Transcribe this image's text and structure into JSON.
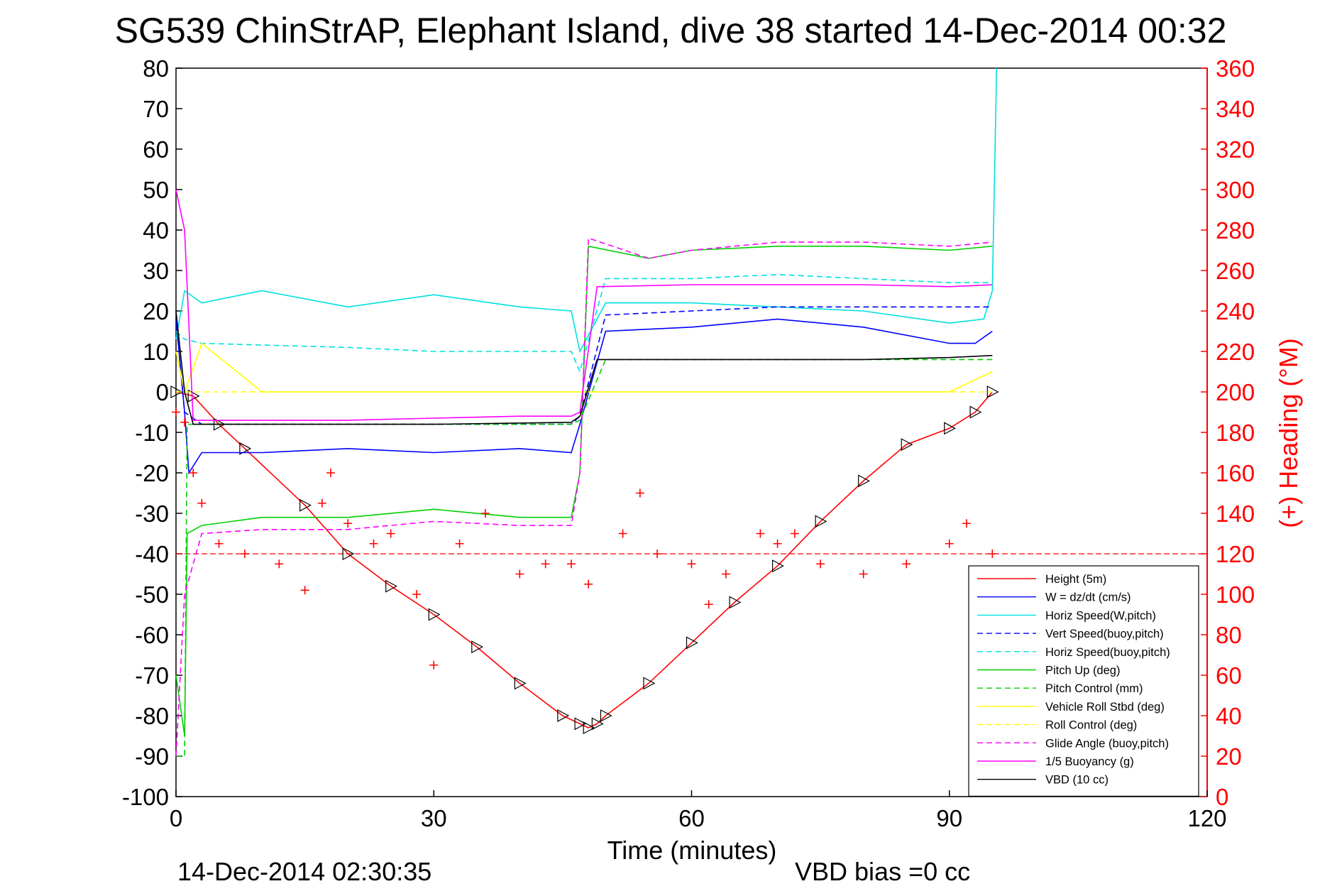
{
  "chart_data": {
    "type": "line",
    "title": "SG539 ChinStrAP, Elephant Island, dive 38 started 14-Dec-2014 00:32",
    "xlabel": "Time (minutes)",
    "ylabel_right": "(+) Heading (°M)",
    "xlim": [
      0,
      120
    ],
    "ylim": [
      -100,
      80
    ],
    "ylim_right": [
      0,
      360
    ],
    "xticks": [
      "0",
      "30",
      "60",
      "90",
      "120"
    ],
    "yticks": [
      "80",
      "70",
      "60",
      "50",
      "40",
      "30",
      "20",
      "10",
      "0",
      "-10",
      "-20",
      "-30",
      "-40",
      "-50",
      "-60",
      "-70",
      "-80",
      "-90",
      "-100"
    ],
    "yticks_right": [
      "360",
      "340",
      "320",
      "300",
      "280",
      "260",
      "240",
      "220",
      "200",
      "180",
      "160",
      "140",
      "120",
      "100",
      "80",
      "60",
      "40",
      "20",
      "0"
    ],
    "grid": true,
    "legend_position": "bottom-right",
    "footer_left": "14-Dec-2014 02:30:35",
    "footer_right": "VBD bias =0 cc",
    "reference_line": {
      "y": -40,
      "color": "#ff0000"
    },
    "series": [
      {
        "name": "Height (5m)",
        "color": "#ff0000",
        "style": "solid",
        "marker": "triangle",
        "x": [
          0,
          2,
          5,
          8,
          15,
          20,
          25,
          30,
          35,
          40,
          45,
          47,
          48,
          49,
          50,
          55,
          60,
          65,
          70,
          75,
          80,
          85,
          90,
          93,
          95
        ],
        "y": [
          0,
          -1,
          -8,
          -14,
          -28,
          -40,
          -48,
          -55,
          -63,
          -72,
          -80,
          -82,
          -83,
          -82,
          -80,
          -72,
          -62,
          -52,
          -43,
          -32,
          -22,
          -13,
          -9,
          -5,
          0
        ]
      },
      {
        "name": "W = dz/dt (cm/s)",
        "color": "#0000ff",
        "style": "solid",
        "x": [
          0,
          1,
          1.5,
          3,
          10,
          20,
          30,
          40,
          46,
          47,
          50,
          60,
          70,
          80,
          90,
          93,
          95
        ],
        "y": [
          18,
          -5,
          -20,
          -15,
          -15,
          -14,
          -15,
          -14,
          -15,
          -8,
          15,
          16,
          18,
          16,
          12,
          12,
          15
        ]
      },
      {
        "name": "Horiz Speed(W,pitch)",
        "color": "#00e0e0",
        "style": "solid",
        "x": [
          0,
          1,
          3,
          10,
          20,
          30,
          40,
          46,
          47,
          50,
          60,
          70,
          80,
          90,
          94,
          95,
          95.5
        ],
        "y": [
          13,
          25,
          22,
          25,
          21,
          24,
          21,
          20,
          10,
          22,
          22,
          21,
          20,
          17,
          18,
          25,
          80
        ]
      },
      {
        "name": "Vert Speed(buoy,pitch)",
        "color": "#0000ff",
        "style": "dashed",
        "x": [
          0,
          1,
          3,
          20,
          46,
          47,
          50,
          60,
          70,
          80,
          90,
          95
        ],
        "y": [
          18,
          -5,
          -8,
          -8,
          -8,
          -6,
          19,
          20,
          21,
          21,
          21,
          21
        ]
      },
      {
        "name": "Horiz Speed(buoy,pitch)",
        "color": "#00e0e0",
        "style": "dashed",
        "x": [
          0,
          1,
          3,
          20,
          30,
          46,
          47,
          50,
          60,
          70,
          80,
          90,
          95
        ],
        "y": [
          15,
          13,
          12,
          11,
          10,
          10,
          5,
          28,
          28,
          29,
          28,
          27,
          27
        ]
      },
      {
        "name": "Pitch Up (deg)",
        "color": "#00d000",
        "style": "solid",
        "x": [
          0,
          1,
          1.3,
          3,
          10,
          20,
          30,
          40,
          46,
          47,
          48,
          55,
          60,
          70,
          80,
          90,
          95
        ],
        "y": [
          -70,
          -85,
          -35,
          -33,
          -31,
          -31,
          -29,
          -31,
          -31,
          -20,
          36,
          33,
          35,
          36,
          36,
          35,
          36
        ]
      },
      {
        "name": "Pitch Control (mm)",
        "color": "#00d000",
        "style": "dashed",
        "x": [
          0,
          1,
          1.3,
          3,
          20,
          46,
          47,
          50,
          60,
          70,
          80,
          90,
          95
        ],
        "y": [
          -90,
          -90,
          -8,
          -8,
          -8,
          -8,
          -7,
          8,
          8,
          8,
          8,
          8,
          8
        ]
      },
      {
        "name": "Vehicle Roll Stbd (deg)",
        "color": "#ffff00",
        "style": "solid",
        "x": [
          0,
          1,
          3,
          10,
          20,
          30,
          40,
          50,
          60,
          70,
          80,
          90,
          95
        ],
        "y": [
          10,
          0,
          12,
          0,
          0,
          0,
          0,
          0,
          0,
          0,
          0,
          0,
          5
        ]
      },
      {
        "name": "Roll Control (deg)",
        "color": "#ffff00",
        "style": "dashed",
        "x": [
          0,
          2,
          20,
          40,
          60,
          80,
          95
        ],
        "y": [
          0,
          0,
          0,
          0,
          0,
          0,
          0
        ]
      },
      {
        "name": "Glide Angle (buoy,pitch)",
        "color": "#ff00ff",
        "style": "dashed",
        "x": [
          0,
          1,
          3,
          10,
          20,
          30,
          40,
          46,
          47,
          48,
          55,
          60,
          70,
          80,
          90,
          95
        ],
        "y": [
          -90,
          -50,
          -35,
          -34,
          -34,
          -32,
          -33,
          -33,
          -20,
          38,
          33,
          35,
          37,
          37,
          36,
          37
        ]
      },
      {
        "name": "1/5 Buoyancy (g)",
        "color": "#ff00ff",
        "style": "solid",
        "x": [
          0,
          1,
          2,
          10,
          20,
          30,
          40,
          46,
          47,
          49,
          60,
          70,
          80,
          90,
          95
        ],
        "y": [
          50,
          40,
          -7,
          -7,
          -7,
          -6.5,
          -6,
          -6,
          -5,
          26,
          26.5,
          26.5,
          26.5,
          26,
          26.5
        ]
      },
      {
        "name": "VBD (10 cc)",
        "color": "#000000",
        "style": "solid",
        "x": [
          0,
          1,
          2,
          10,
          20,
          30,
          46,
          47,
          49,
          60,
          70,
          80,
          90,
          95
        ],
        "y": [
          20,
          0,
          -8,
          -8,
          -8,
          -8,
          -7.5,
          -6,
          8,
          8,
          8,
          8,
          8.5,
          9
        ]
      },
      {
        "name": "(+) Heading",
        "color": "#ff0000",
        "style": "markers",
        "marker": "plus",
        "axis": "right",
        "x": [
          0,
          1,
          2,
          3,
          5,
          8,
          12,
          15,
          17,
          18,
          20,
          23,
          25,
          28,
          30,
          33,
          36,
          40,
          43,
          46,
          48,
          52,
          54,
          56,
          60,
          62,
          64,
          68,
          70,
          72,
          75,
          80,
          85,
          90,
          92,
          95
        ],
        "y": [
          190,
          185,
          160,
          145,
          125,
          120,
          115,
          102,
          145,
          160,
          135,
          125,
          130,
          100,
          65,
          125,
          140,
          110,
          115,
          115,
          105,
          130,
          150,
          120,
          115,
          95,
          110,
          130,
          125,
          130,
          115,
          110,
          115,
          125,
          135,
          120
        ]
      }
    ]
  }
}
